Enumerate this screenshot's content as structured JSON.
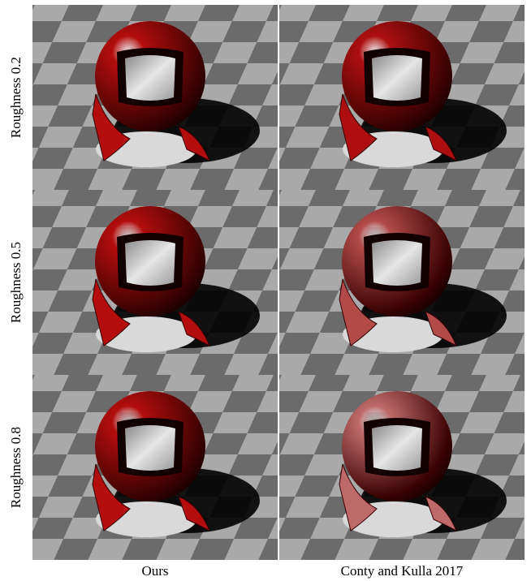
{
  "figure": {
    "rows": [
      {
        "label": "Roughness 0.2"
      },
      {
        "label": "Roughness 0.5"
      },
      {
        "label": "Roughness 0.8"
      }
    ],
    "columns": [
      {
        "label": "Ours"
      },
      {
        "label": "Conty and Kulla 2017"
      }
    ]
  },
  "colors": {
    "ours_red": "#b30d0d",
    "conty_red_r02": "#ad0f10",
    "conty_red_r05": "#b24a4a",
    "conty_red_r08": "#bf6a6a",
    "floor_light": "#a9a9a9",
    "floor_dark": "#6b6b6b",
    "plate": "#d9d9d9",
    "inner_white": "#e6e6e6"
  }
}
